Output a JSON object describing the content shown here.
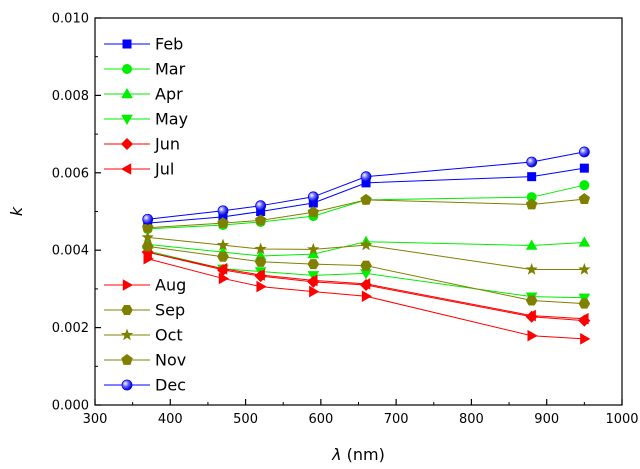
{
  "chart_data": {
    "type": "line",
    "xlabel_symbol": "λ",
    "xlabel_unit": " (nm)",
    "ylabel": "k",
    "xlim": [
      300,
      1000
    ],
    "ylim": [
      0.0,
      0.01
    ],
    "x_ticks": [
      300,
      400,
      500,
      600,
      700,
      800,
      900,
      1000
    ],
    "y_ticks": [
      "0.000",
      "0.002",
      "0.004",
      "0.006",
      "0.008",
      "0.010"
    ],
    "grid": false,
    "legend_placement": "top-left and lower-left",
    "x": [
      370,
      470,
      520,
      590,
      660,
      880,
      950
    ],
    "series": [
      {
        "name": "Feb",
        "color": "#0000ff",
        "marker": "square",
        "values": [
          0.0047,
          0.00486,
          0.005,
          0.00522,
          0.00574,
          0.0059,
          0.00612
        ]
      },
      {
        "name": "Mar",
        "color": "#00ee00",
        "marker": "circle",
        "values": [
          0.00455,
          0.00465,
          0.00473,
          0.00488,
          0.0053,
          0.00537,
          0.00568
        ]
      },
      {
        "name": "Apr",
        "color": "#00ee00",
        "marker": "triangle-up",
        "values": [
          0.00415,
          0.00395,
          0.00385,
          0.0039,
          0.00422,
          0.00412,
          0.0042
        ]
      },
      {
        "name": "May",
        "color": "#00ee00",
        "marker": "triangle-down",
        "values": [
          0.00398,
          0.00352,
          0.00345,
          0.00335,
          0.0034,
          0.0028,
          0.00277
        ]
      },
      {
        "name": "Jun",
        "color": "#ff0000",
        "marker": "diamond",
        "values": [
          0.00395,
          0.00349,
          0.00333,
          0.00318,
          0.0031,
          0.00228,
          0.00218
        ]
      },
      {
        "name": "Jul",
        "color": "#ff0000",
        "marker": "triangle-left",
        "values": [
          0.00395,
          0.00352,
          0.00336,
          0.00322,
          0.00313,
          0.00231,
          0.00223
        ]
      },
      {
        "name": "Aug",
        "color": "#ff0000",
        "marker": "triangle-right",
        "values": [
          0.00378,
          0.00327,
          0.00306,
          0.00293,
          0.00281,
          0.00179,
          0.00171
        ]
      },
      {
        "name": "Sep",
        "color": "#808000",
        "marker": "hexagon",
        "values": [
          0.0041,
          0.00383,
          0.0037,
          0.00364,
          0.0036,
          0.0027,
          0.00262
        ]
      },
      {
        "name": "Oct",
        "color": "#808000",
        "marker": "star",
        "values": [
          0.00433,
          0.00413,
          0.00403,
          0.00402,
          0.00413,
          0.0035,
          0.0035
        ]
      },
      {
        "name": "Nov",
        "color": "#808000",
        "marker": "pentagon",
        "values": [
          0.00458,
          0.0047,
          0.00477,
          0.00498,
          0.0053,
          0.00518,
          0.00532
        ]
      },
      {
        "name": "Dec",
        "color": "#0000ff",
        "marker": "circle-shaded",
        "values": [
          0.0048,
          0.00502,
          0.00515,
          0.00538,
          0.0059,
          0.00628,
          0.00654
        ]
      }
    ],
    "legend_groups": [
      [
        "Feb",
        "Mar",
        "Apr",
        "May",
        "Jun",
        "Jul"
      ],
      [
        "Aug",
        "Sep",
        "Oct",
        "Nov",
        "Dec"
      ]
    ]
  }
}
